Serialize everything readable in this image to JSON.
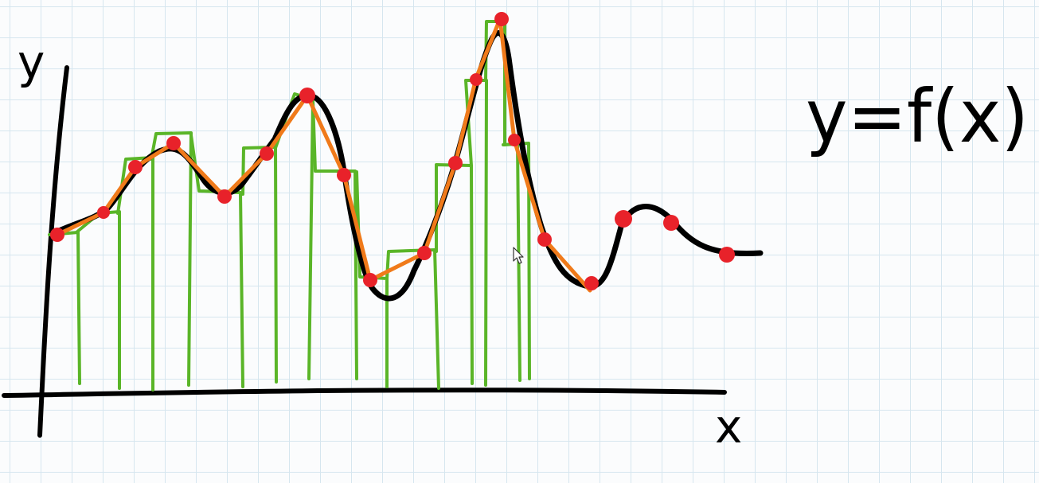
{
  "labels": {
    "y_axis": "y",
    "x_axis": "x",
    "equation": "y=f(x)"
  },
  "colors": {
    "curve": "#000000",
    "samples": "#e8222a",
    "linear_approx": "#f07a1a",
    "rectangles": "#5ab528",
    "grid": "#d6e6ef"
  }
}
